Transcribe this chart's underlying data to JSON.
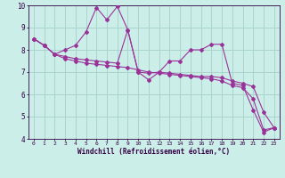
{
  "background_color": "#cceee8",
  "grid_color": "#aad4cc",
  "line_color": "#993399",
  "title": "Windchill (Refroidissement éolien,°C)",
  "xlim": [
    -0.5,
    23.5
  ],
  "ylim": [
    4,
    10
  ],
  "xtick_labels": [
    "0",
    "1",
    "2",
    "3",
    "4",
    "5",
    "6",
    "7",
    "8",
    "9",
    "10",
    "11",
    "12",
    "13",
    "14",
    "15",
    "16",
    "17",
    "18",
    "19",
    "20",
    "21",
    "22",
    "23"
  ],
  "ytick_values": [
    4,
    5,
    6,
    7,
    8,
    9,
    10
  ],
  "series": [
    {
      "x": [
        0,
        1,
        2,
        3,
        4,
        5,
        6,
        7,
        8,
        9,
        10,
        11,
        12,
        13,
        14,
        15,
        16,
        17,
        18,
        19,
        20,
        21,
        22,
        23
      ],
      "y": [
        8.5,
        8.2,
        7.8,
        8.0,
        8.2,
        8.8,
        9.9,
        9.35,
        9.95,
        8.9,
        7.0,
        6.65,
        7.0,
        7.5,
        7.5,
        8.0,
        8.0,
        8.25,
        8.25,
        6.5,
        6.4,
        5.3,
        4.3,
        4.5
      ]
    },
    {
      "x": [
        0,
        1,
        2,
        3,
        4,
        5,
        6,
        7,
        8,
        9,
        10,
        11,
        12,
        13,
        14,
        15,
        16,
        17,
        18,
        19,
        20,
        21,
        22,
        23
      ],
      "y": [
        8.5,
        8.2,
        7.8,
        7.7,
        7.6,
        7.55,
        7.5,
        7.45,
        7.4,
        8.9,
        7.0,
        6.95,
        7.0,
        6.95,
        6.9,
        6.85,
        6.8,
        6.8,
        6.75,
        6.6,
        6.5,
        6.35,
        5.2,
        4.5
      ]
    },
    {
      "x": [
        0,
        1,
        2,
        3,
        4,
        5,
        6,
        7,
        8,
        9,
        10,
        11,
        12,
        13,
        14,
        15,
        16,
        17,
        18,
        19,
        20,
        21,
        22,
        23
      ],
      "y": [
        8.5,
        8.2,
        7.8,
        7.6,
        7.5,
        7.4,
        7.35,
        7.3,
        7.25,
        7.2,
        7.1,
        7.0,
        6.95,
        6.9,
        6.85,
        6.8,
        6.75,
        6.7,
        6.6,
        6.4,
        6.3,
        5.8,
        4.4,
        4.5
      ]
    }
  ]
}
